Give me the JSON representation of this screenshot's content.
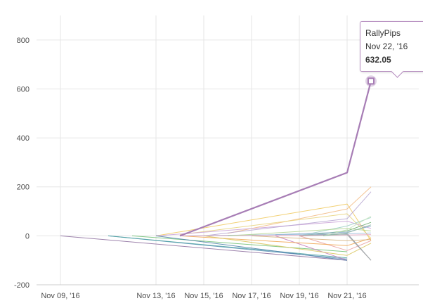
{
  "chart_data": {
    "type": "line",
    "title": "",
    "xlabel": "",
    "ylabel": "",
    "ylim": [
      -200,
      900
    ],
    "yticks": [
      -200,
      0,
      200,
      400,
      600,
      800
    ],
    "xlim": [
      "2016-11-08",
      "2016-11-24"
    ],
    "xticks": [
      {
        "date": "2016-11-09",
        "label": "Nov 09, '16"
      },
      {
        "date": "2016-11-13",
        "label": "Nov 13, '16"
      },
      {
        "date": "2016-11-15",
        "label": "Nov 15, '16"
      },
      {
        "date": "2016-11-17",
        "label": "Nov 17, '16"
      },
      {
        "date": "2016-11-19",
        "label": "Nov 19, '16"
      },
      {
        "date": "2016-11-21",
        "label": "Nov 21, '16"
      }
    ],
    "highlight_color": "#a77db5",
    "series": [
      {
        "name": "RallyPips",
        "color": "#a77db5",
        "highlight": true,
        "points": [
          [
            "2016-11-14",
            0
          ],
          [
            "2016-11-21",
            258
          ],
          [
            "2016-11-22",
            632.05
          ]
        ]
      },
      {
        "color": "#8c6d9e",
        "points": [
          [
            "2016-11-09",
            0
          ],
          [
            "2016-11-21",
            -100
          ]
        ]
      },
      {
        "color": "#5b8db8",
        "points": [
          [
            "2016-11-11",
            0
          ],
          [
            "2016-11-21",
            -95
          ]
        ]
      },
      {
        "color": "#4aa3a0",
        "points": [
          [
            "2016-11-11",
            0
          ],
          [
            "2016-11-21",
            -90
          ]
        ]
      },
      {
        "color": "#6fbf73",
        "points": [
          [
            "2016-11-12",
            0
          ],
          [
            "2016-11-21",
            -65
          ]
        ]
      },
      {
        "color": "#f0c85a",
        "points": [
          [
            "2016-11-13",
            0
          ],
          [
            "2016-11-21",
            130
          ],
          [
            "2016-11-22",
            -20
          ]
        ]
      },
      {
        "color": "#f2b880",
        "points": [
          [
            "2016-11-16",
            10
          ],
          [
            "2016-11-21",
            110
          ],
          [
            "2016-11-22",
            200
          ]
        ]
      },
      {
        "color": "#e8d27a",
        "points": [
          [
            "2016-11-14",
            5
          ],
          [
            "2016-11-21",
            90
          ],
          [
            "2016-11-22",
            -10
          ]
        ]
      },
      {
        "color": "#c9a0d6",
        "points": [
          [
            "2016-11-13",
            0
          ],
          [
            "2016-11-21",
            60
          ],
          [
            "2016-11-22",
            30
          ]
        ]
      },
      {
        "color": "#b5a3d0",
        "points": [
          [
            "2016-11-15",
            0
          ],
          [
            "2016-11-21",
            70
          ],
          [
            "2016-11-22",
            180
          ]
        ]
      },
      {
        "color": "#9ad0c2",
        "points": [
          [
            "2016-11-19",
            0
          ],
          [
            "2016-11-21",
            40
          ],
          [
            "2016-11-22",
            75
          ]
        ]
      },
      {
        "color": "#66a86b",
        "points": [
          [
            "2016-11-19",
            0
          ],
          [
            "2016-11-21",
            20
          ],
          [
            "2016-11-22",
            55
          ]
        ]
      },
      {
        "color": "#7fa7c9",
        "points": [
          [
            "2016-11-18",
            5
          ],
          [
            "2016-11-21",
            15
          ],
          [
            "2016-11-22",
            40
          ]
        ]
      },
      {
        "color": "#e99b9b",
        "points": [
          [
            "2016-11-19",
            0
          ],
          [
            "2016-11-21",
            -60
          ],
          [
            "2016-11-22",
            -20
          ]
        ]
      },
      {
        "color": "#c47ab8",
        "points": [
          [
            "2016-11-18",
            0
          ],
          [
            "2016-11-21",
            -100
          ]
        ]
      },
      {
        "color": "#f0a34d",
        "points": [
          [
            "2016-11-14",
            0
          ],
          [
            "2016-11-21",
            -40
          ],
          [
            "2016-11-22",
            -10
          ]
        ]
      },
      {
        "color": "#d8c45a",
        "points": [
          [
            "2016-11-15",
            0
          ],
          [
            "2016-11-21",
            -80
          ],
          [
            "2016-11-22",
            -30
          ]
        ]
      },
      {
        "color": "#7c8b97",
        "points": [
          [
            "2016-11-19",
            0
          ],
          [
            "2016-11-21",
            10
          ],
          [
            "2016-11-22",
            -100
          ]
        ]
      },
      {
        "color": "#4c7ea8",
        "points": [
          [
            "2016-11-13",
            0
          ],
          [
            "2016-11-21",
            -100
          ]
        ]
      },
      {
        "color": "#9bbbd9",
        "points": [
          [
            "2016-11-14",
            0
          ],
          [
            "2016-11-21",
            8
          ],
          [
            "2016-11-22",
            12
          ]
        ]
      },
      {
        "color": "#e7a9c4",
        "points": [
          [
            "2016-11-14",
            0
          ],
          [
            "2016-11-21",
            3
          ],
          [
            "2016-11-22",
            5
          ]
        ]
      },
      {
        "color": "#b0d48e",
        "points": [
          [
            "2016-11-16",
            0
          ],
          [
            "2016-11-21",
            30
          ],
          [
            "2016-11-22",
            20
          ]
        ]
      },
      {
        "color": "#a5a5a5",
        "points": [
          [
            "2016-11-19",
            0
          ],
          [
            "2016-11-21",
            5
          ],
          [
            "2016-11-22",
            -100
          ]
        ]
      },
      {
        "color": "#d4b07a",
        "points": [
          [
            "2016-11-17",
            0
          ],
          [
            "2016-11-21",
            -20
          ],
          [
            "2016-11-22",
            -15
          ]
        ]
      },
      {
        "color": "#c5e3b8",
        "points": [
          [
            "2016-11-20",
            0
          ],
          [
            "2016-11-21",
            25
          ],
          [
            "2016-11-22",
            80
          ]
        ]
      },
      {
        "color": "#8fb8a0",
        "points": [
          [
            "2016-11-20",
            0
          ],
          [
            "2016-11-21",
            12
          ],
          [
            "2016-11-22",
            45
          ]
        ]
      }
    ],
    "tooltip": {
      "series": "RallyPips",
      "date_label": "Nov 22, '16",
      "value": "632.05"
    }
  }
}
